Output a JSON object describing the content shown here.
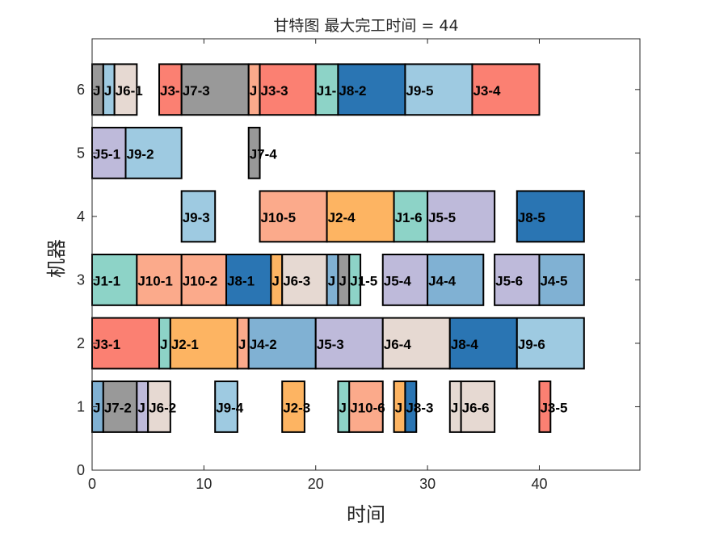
{
  "chart_data": {
    "type": "gantt",
    "title": "甘特图 最大完工时间 = 44",
    "xlabel": "时间",
    "ylabel": "机器",
    "xlim": [
      0,
      49
    ],
    "ylim": [
      0,
      6.8
    ],
    "xticks": [
      0,
      10,
      20,
      30,
      40
    ],
    "yticks": [
      0,
      1,
      2,
      3,
      4,
      5,
      6
    ],
    "bar_height": 0.8,
    "grid": false,
    "job_colors": {
      "J1": "#8dd3c7",
      "J2": "#fdb462",
      "J3": "#fb8072",
      "J4": "#80b1d3",
      "J5": "#bebada",
      "J6": "#e6d9d2",
      "J7": "#999999",
      "J8": "#2a75b3",
      "J9": "#9ecae1",
      "J10": "#fbaa8b"
    },
    "tasks": [
      {
        "machine": 6,
        "start": 0,
        "end": 1,
        "job": "J7",
        "label": "J"
      },
      {
        "machine": 6,
        "start": 1,
        "end": 2,
        "job": "J9",
        "label": "J"
      },
      {
        "machine": 6,
        "start": 2,
        "end": 4,
        "job": "J6",
        "label": "J6-1"
      },
      {
        "machine": 6,
        "start": 6,
        "end": 8,
        "job": "J3",
        "label": "J3-"
      },
      {
        "machine": 6,
        "start": 8,
        "end": 14,
        "job": "J7",
        "label": "J7-3"
      },
      {
        "machine": 6,
        "start": 14,
        "end": 15,
        "job": "J10",
        "label": "J"
      },
      {
        "machine": 6,
        "start": 15,
        "end": 20,
        "job": "J3",
        "label": "J3-3"
      },
      {
        "machine": 6,
        "start": 20,
        "end": 22,
        "job": "J1",
        "label": "J1-"
      },
      {
        "machine": 6,
        "start": 22,
        "end": 28,
        "job": "J8",
        "label": "J8-2"
      },
      {
        "machine": 6,
        "start": 28,
        "end": 34,
        "job": "J9",
        "label": "J9-5"
      },
      {
        "machine": 6,
        "start": 34,
        "end": 40,
        "job": "J3",
        "label": "J3-4"
      },
      {
        "machine": 5,
        "start": 0,
        "end": 3,
        "job": "J5",
        "label": "J5-1"
      },
      {
        "machine": 5,
        "start": 3,
        "end": 8,
        "job": "J9",
        "label": "J9-2"
      },
      {
        "machine": 5,
        "start": 14,
        "end": 15,
        "job": "J7",
        "label": "J7-4"
      },
      {
        "machine": 4,
        "start": 8,
        "end": 11,
        "job": "J9",
        "label": "J9-3"
      },
      {
        "machine": 4,
        "start": 15,
        "end": 21,
        "job": "J10",
        "label": "J10-5"
      },
      {
        "machine": 4,
        "start": 21,
        "end": 27,
        "job": "J2",
        "label": "J2-4"
      },
      {
        "machine": 4,
        "start": 27,
        "end": 30,
        "job": "J1",
        "label": "J1-6"
      },
      {
        "machine": 4,
        "start": 30,
        "end": 36,
        "job": "J5",
        "label": "J5-5"
      },
      {
        "machine": 4,
        "start": 38,
        "end": 44,
        "job": "J8",
        "label": "J8-5"
      },
      {
        "machine": 3,
        "start": 0,
        "end": 4,
        "job": "J1",
        "label": "J1-1"
      },
      {
        "machine": 3,
        "start": 4,
        "end": 8,
        "job": "J10",
        "label": "J10-1"
      },
      {
        "machine": 3,
        "start": 8,
        "end": 12,
        "job": "J10",
        "label": "J10-2"
      },
      {
        "machine": 3,
        "start": 12,
        "end": 16,
        "job": "J8",
        "label": "J8-1"
      },
      {
        "machine": 3,
        "start": 16,
        "end": 17,
        "job": "J2",
        "label": "J"
      },
      {
        "machine": 3,
        "start": 17,
        "end": 21,
        "job": "J6",
        "label": "J6-3"
      },
      {
        "machine": 3,
        "start": 21,
        "end": 22,
        "job": "J4",
        "label": "J"
      },
      {
        "machine": 3,
        "start": 22,
        "end": 23,
        "job": "J7",
        "label": "J"
      },
      {
        "machine": 3,
        "start": 23,
        "end": 24,
        "job": "J1",
        "label": "J1-5"
      },
      {
        "machine": 3,
        "start": 26,
        "end": 30,
        "job": "J5",
        "label": "J5-4"
      },
      {
        "machine": 3,
        "start": 30,
        "end": 35,
        "job": "J4",
        "label": "J4-4"
      },
      {
        "machine": 3,
        "start": 36,
        "end": 40,
        "job": "J5",
        "label": "J5-6"
      },
      {
        "machine": 3,
        "start": 40,
        "end": 44,
        "job": "J4",
        "label": "J4-5"
      },
      {
        "machine": 2,
        "start": 0,
        "end": 6,
        "job": "J3",
        "label": "J3-1"
      },
      {
        "machine": 2,
        "start": 6,
        "end": 7,
        "job": "J1",
        "label": "J"
      },
      {
        "machine": 2,
        "start": 7,
        "end": 13,
        "job": "J2",
        "label": "J2-1"
      },
      {
        "machine": 2,
        "start": 13,
        "end": 14,
        "job": "J10",
        "label": "J"
      },
      {
        "machine": 2,
        "start": 14,
        "end": 20,
        "job": "J4",
        "label": "J4-2"
      },
      {
        "machine": 2,
        "start": 20,
        "end": 26,
        "job": "J5",
        "label": "J5-3"
      },
      {
        "machine": 2,
        "start": 26,
        "end": 32,
        "job": "J6",
        "label": "J6-4"
      },
      {
        "machine": 2,
        "start": 32,
        "end": 38,
        "job": "J8",
        "label": "J8-4"
      },
      {
        "machine": 2,
        "start": 38,
        "end": 44,
        "job": "J9",
        "label": "J9-6"
      },
      {
        "machine": 1,
        "start": 0,
        "end": 1,
        "job": "J4",
        "label": "J"
      },
      {
        "machine": 1,
        "start": 1,
        "end": 4,
        "job": "J7",
        "label": "J7-2"
      },
      {
        "machine": 1,
        "start": 4,
        "end": 5,
        "job": "J5",
        "label": "J"
      },
      {
        "machine": 1,
        "start": 5,
        "end": 7,
        "job": "J6",
        "label": "J6-2"
      },
      {
        "machine": 1,
        "start": 11,
        "end": 13,
        "job": "J9",
        "label": "J9-4"
      },
      {
        "machine": 1,
        "start": 17,
        "end": 19,
        "job": "J2",
        "label": "J2-3"
      },
      {
        "machine": 1,
        "start": 22,
        "end": 23,
        "job": "J1",
        "label": "J"
      },
      {
        "machine": 1,
        "start": 23,
        "end": 26,
        "job": "J10",
        "label": "J10-6"
      },
      {
        "machine": 1,
        "start": 27,
        "end": 28,
        "job": "J2",
        "label": "J"
      },
      {
        "machine": 1,
        "start": 28,
        "end": 29,
        "job": "J8",
        "label": "J8-3"
      },
      {
        "machine": 1,
        "start": 32,
        "end": 33,
        "job": "J6",
        "label": "J"
      },
      {
        "machine": 1,
        "start": 33,
        "end": 36,
        "job": "J6",
        "label": "J6-6"
      },
      {
        "machine": 1,
        "start": 40,
        "end": 41,
        "job": "J3",
        "label": "J3-5"
      }
    ]
  }
}
